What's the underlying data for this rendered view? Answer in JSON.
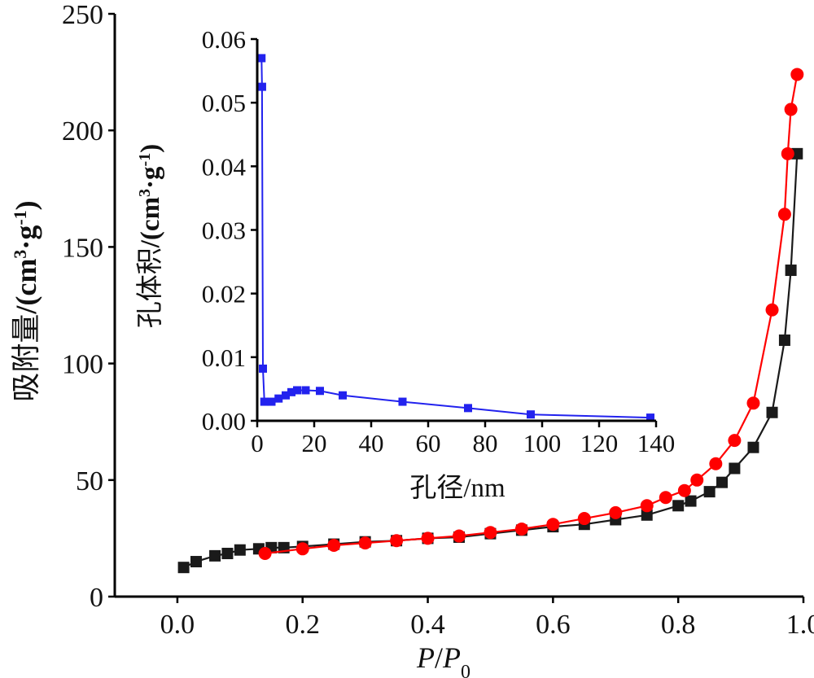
{
  "chart_data": [
    {
      "type": "line",
      "title": "",
      "xlabel": "P/P0",
      "ylabel": "吸附量/(cm3·g-1)",
      "xlim": [
        -0.1,
        1.0
      ],
      "ylim": [
        0,
        250
      ],
      "x_ticks": [
        "0.0",
        "0.2",
        "0.4",
        "0.6",
        "0.8",
        "1.0"
      ],
      "y_ticks": [
        "0",
        "50",
        "100",
        "150",
        "200",
        "250"
      ],
      "grid": false,
      "series": [
        {
          "color": "#1a1a1a",
          "marker": "square",
          "x": [
            0.01,
            0.03,
            0.06,
            0.08,
            0.1,
            0.13,
            0.15,
            0.17,
            0.2,
            0.25,
            0.3,
            0.35,
            0.4,
            0.45,
            0.5,
            0.55,
            0.6,
            0.65,
            0.7,
            0.75,
            0.8,
            0.82,
            0.85,
            0.87,
            0.89,
            0.92,
            0.95,
            0.97,
            0.98,
            0.99
          ],
          "y": [
            12.5,
            15.0,
            17.5,
            18.5,
            20.0,
            20.5,
            21.0,
            21.0,
            21.5,
            22.5,
            23.5,
            24.0,
            25.0,
            25.5,
            27.0,
            28.5,
            30.0,
            31.0,
            33.0,
            35.0,
            39.0,
            41.0,
            45.0,
            49.0,
            55.0,
            64.0,
            79.0,
            110.0,
            140.0,
            190.0
          ]
        },
        {
          "color": "#ff0000",
          "marker": "circle",
          "x": [
            0.14,
            0.2,
            0.25,
            0.3,
            0.35,
            0.4,
            0.45,
            0.5,
            0.55,
            0.6,
            0.65,
            0.7,
            0.75,
            0.78,
            0.81,
            0.83,
            0.86,
            0.89,
            0.92,
            0.95,
            0.97,
            0.975,
            0.98,
            0.99
          ],
          "y": [
            18.5,
            20.5,
            22.0,
            23.0,
            24.0,
            25.0,
            26.0,
            27.5,
            29.0,
            31.0,
            33.5,
            36.0,
            39.0,
            42.5,
            45.5,
            50.0,
            57.0,
            67.0,
            83.0,
            123.0,
            164.0,
            190.0,
            209.0,
            224.0
          ]
        }
      ]
    },
    {
      "type": "line",
      "title": "",
      "xlabel": "孔径/nm",
      "ylabel": "孔体积/(cm3·g-1)",
      "xlim": [
        0,
        140
      ],
      "ylim": [
        0,
        0.06
      ],
      "x_ticks": [
        "0",
        "20",
        "40",
        "60",
        "80",
        "100",
        "120",
        "140"
      ],
      "y_ticks": [
        "0.00",
        "0.01",
        "0.02",
        "0.03",
        "0.04",
        "0.05",
        "0.06"
      ],
      "grid": false,
      "series": [
        {
          "color": "#2222ee",
          "marker": "square",
          "x": [
            1.5,
            1.7,
            2.0,
            2.5,
            5.0,
            7.5,
            10.0,
            12.0,
            14.0,
            17.0,
            22.0,
            30.0,
            51.0,
            74.0,
            96.0,
            138.0
          ],
          "y": [
            0.057,
            0.0525,
            0.0082,
            0.003,
            0.003,
            0.0035,
            0.004,
            0.0045,
            0.0048,
            0.0048,
            0.0047,
            0.004,
            0.003,
            0.002,
            0.001,
            0.0005
          ]
        }
      ]
    }
  ]
}
